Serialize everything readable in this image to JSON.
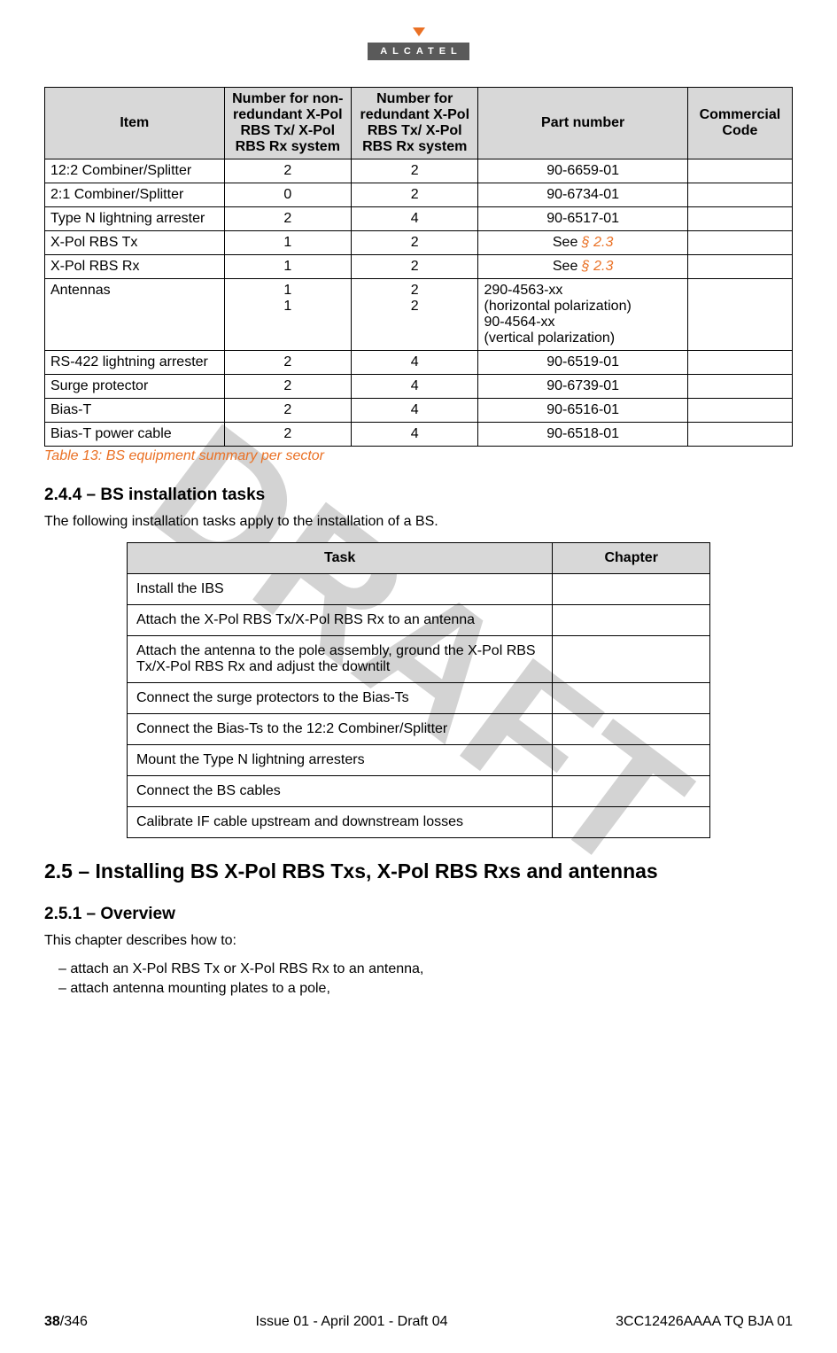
{
  "logo": {
    "text": "ALCATEL"
  },
  "watermark": "DRAFT",
  "equip_table": {
    "headers": {
      "item": "Item",
      "nonred": "Number for non-redundant X-Pol RBS Tx/ X-Pol RBS Rx system",
      "red": "Number for redundant X-Pol RBS Tx/ X-Pol RBS Rx system",
      "part": "Part number",
      "code": "Commercial Code"
    },
    "rows": [
      {
        "item": "12:2 Combiner/Splitter",
        "nr": "2",
        "r": "2",
        "pn": "90-6659-01",
        "cc": ""
      },
      {
        "item": "2:1 Combiner/Splitter",
        "nr": "0",
        "r": "2",
        "pn": "90-6734-01",
        "cc": ""
      },
      {
        "item": "Type N lightning arrester",
        "nr": "2",
        "r": "4",
        "pn": "90-6517-01",
        "cc": ""
      },
      {
        "item": "X-Pol RBS Tx",
        "nr": "1",
        "r": "2",
        "pn_prefix": "See ",
        "pn_ref": "§ 2.3",
        "cc": ""
      },
      {
        "item": "X-Pol RBS Rx",
        "nr": "1",
        "r": "2",
        "pn_prefix": "See ",
        "pn_ref": "§ 2.3",
        "cc": ""
      },
      {
        "item": "Antennas",
        "nr": "1\n1",
        "r": "2\n2",
        "pn": "290-4563-xx\n(horizontal polarization)\n90-4564-xx\n(vertical polarization)",
        "cc": ""
      },
      {
        "item": "RS-422 lightning arrester",
        "nr": "2",
        "r": "4",
        "pn": "90-6519-01",
        "cc": ""
      },
      {
        "item": "Surge protector",
        "nr": "2",
        "r": "4",
        "pn": "90-6739-01",
        "cc": ""
      },
      {
        "item": "Bias-T",
        "nr": "2",
        "r": "4",
        "pn": "90-6516-01",
        "cc": ""
      },
      {
        "item": "Bias-T power cable",
        "nr": "2",
        "r": "4",
        "pn": "90-6518-01",
        "cc": ""
      }
    ],
    "caption": "Table 13: BS equipment summary per sector"
  },
  "sec_244": {
    "heading": "2.4.4 –  BS installation tasks",
    "intro": "The following installation tasks apply to the installation of a BS."
  },
  "tasks_table": {
    "headers": {
      "task": "Task",
      "chapter": "Chapter"
    },
    "rows": [
      "Install the IBS",
      "Attach the X-Pol RBS Tx/X-Pol RBS Rx to an antenna",
      "Attach the antenna to the pole assembly, ground the X-Pol RBS Tx/X-Pol RBS Rx and adjust the downtilt",
      "Connect the surge protectors to the Bias-Ts",
      "Connect the Bias-Ts to the 12:2 Combiner/Splitter",
      "Mount the Type N lightning arresters",
      "Connect the BS cables",
      "Calibrate IF cable upstream and downstream losses"
    ]
  },
  "sec_25": {
    "heading": "2.5 – Installing BS X-Pol RBS Txs, X-Pol RBS Rxs and antennas"
  },
  "sec_251": {
    "heading": "2.5.1 –  Overview",
    "intro": "This chapter describes how to:",
    "bullets": [
      "attach an X-Pol RBS Tx or X-Pol RBS Rx to an antenna,",
      "attach antenna mounting plates to a pole,"
    ]
  },
  "footer": {
    "page": "38",
    "total": "/346",
    "issue": "Issue 01 - April 2001 - Draft 04",
    "docid": "3CC12426AAAA TQ BJA 01"
  }
}
